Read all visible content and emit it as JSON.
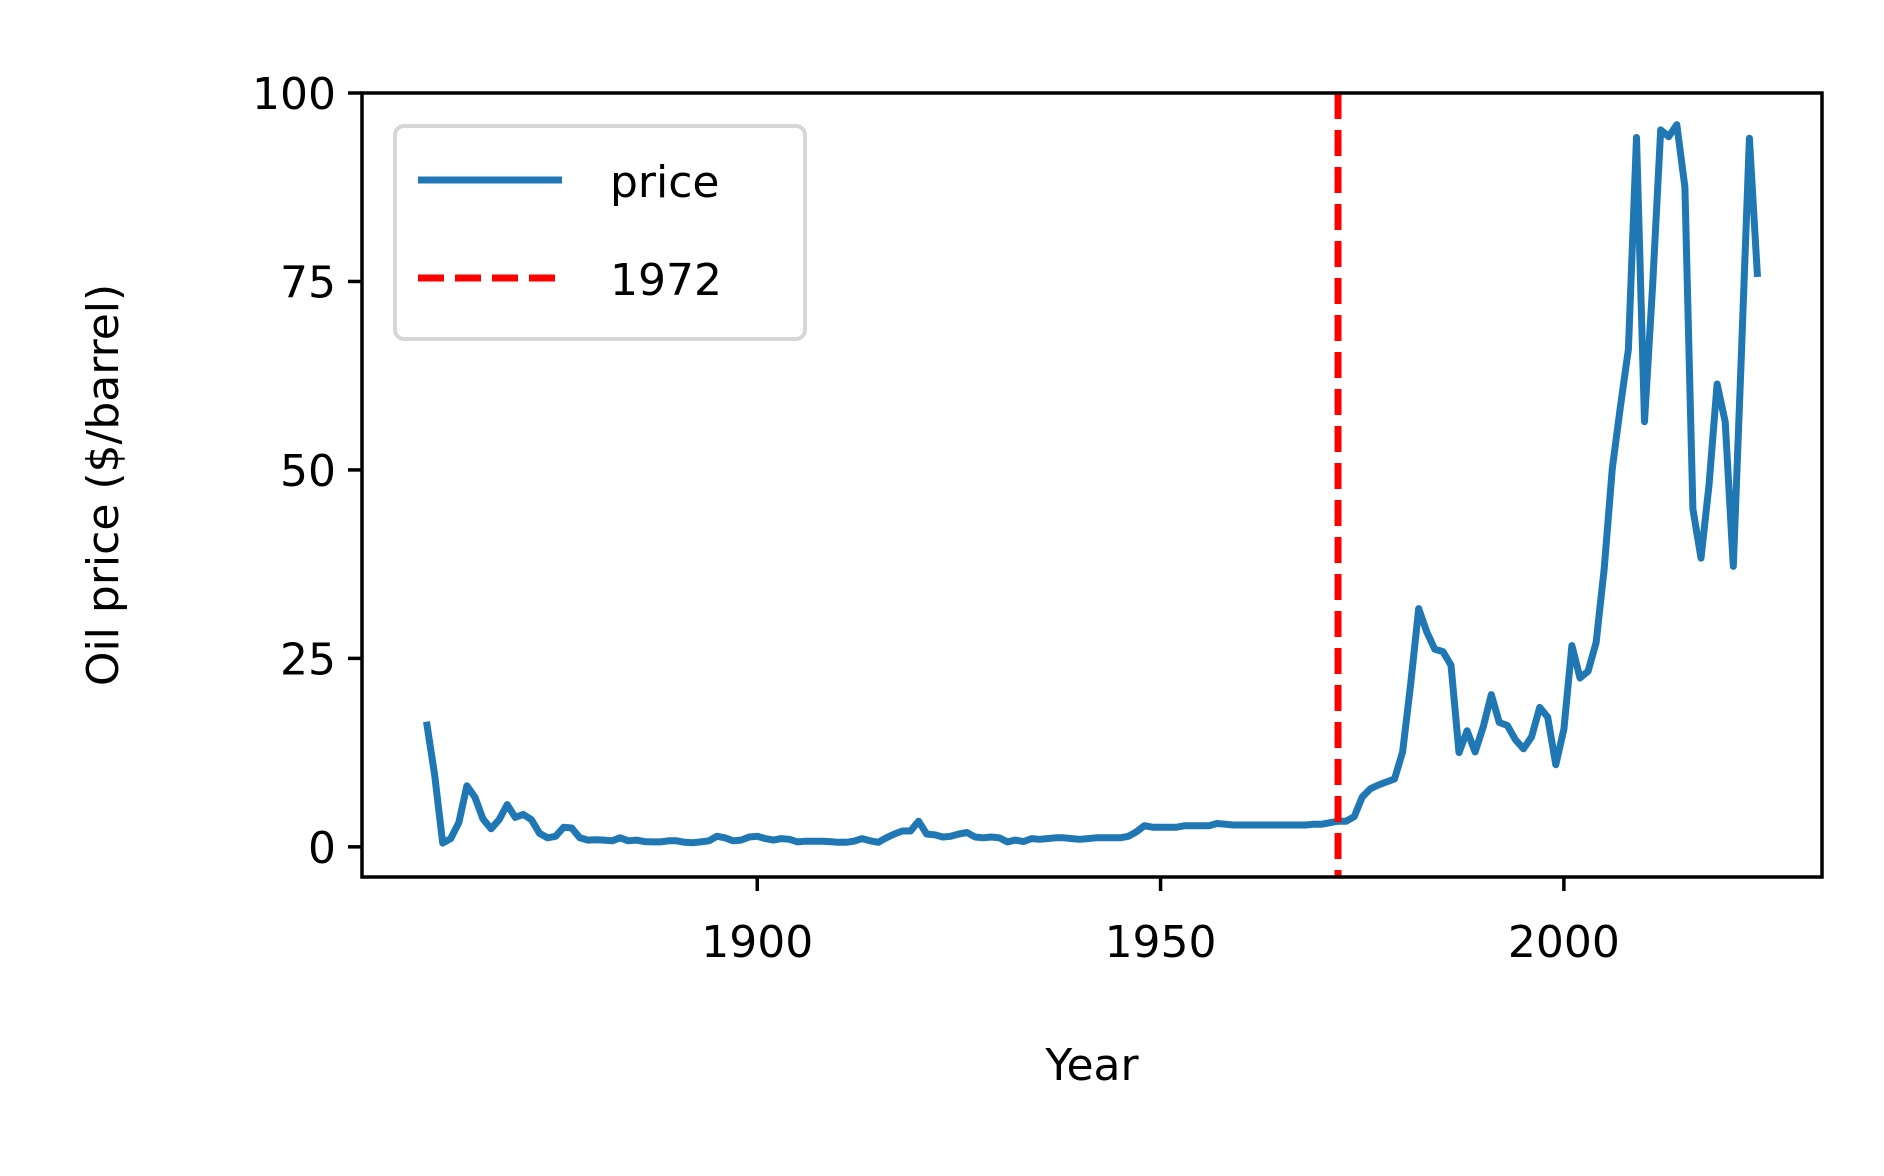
{
  "chart_data": {
    "type": "line",
    "title": "",
    "xlabel": "Year",
    "ylabel": "Oil price ($/barrel)",
    "xlim": [
      1851,
      2032
    ],
    "ylim": [
      -4,
      100
    ],
    "xticks": [
      1900,
      1950,
      2000
    ],
    "yticks": [
      0,
      25,
      50,
      75,
      100
    ],
    "grid": false,
    "legend": {
      "position": "top-left",
      "entries": [
        "price",
        "1972"
      ]
    },
    "series": [
      {
        "name": "price",
        "color": "#1f77b4",
        "x": [
          1859,
          1860,
          1861,
          1862,
          1863,
          1864,
          1865,
          1866,
          1867,
          1868,
          1869,
          1870,
          1871,
          1872,
          1873,
          1874,
          1875,
          1876,
          1877,
          1878,
          1879,
          1880,
          1881,
          1882,
          1883,
          1884,
          1885,
          1886,
          1887,
          1888,
          1889,
          1890,
          1891,
          1892,
          1893,
          1894,
          1895,
          1896,
          1897,
          1898,
          1899,
          1900,
          1901,
          1902,
          1903,
          1904,
          1905,
          1906,
          1907,
          1908,
          1909,
          1910,
          1911,
          1912,
          1913,
          1914,
          1915,
          1916,
          1917,
          1918,
          1919,
          1920,
          1921,
          1922,
          1923,
          1924,
          1925,
          1926,
          1927,
          1928,
          1929,
          1930,
          1931,
          1932,
          1933,
          1934,
          1935,
          1936,
          1937,
          1938,
          1939,
          1940,
          1941,
          1942,
          1943,
          1944,
          1945,
          1946,
          1947,
          1948,
          1949,
          1950,
          1951,
          1952,
          1953,
          1954,
          1955,
          1956,
          1957,
          1958,
          1959,
          1960,
          1961,
          1962,
          1963,
          1964,
          1965,
          1966,
          1967,
          1968,
          1969,
          1970,
          1971,
          1972,
          1973,
          1974,
          1975,
          1976,
          1977,
          1978,
          1979,
          1980,
          1981,
          1982,
          1983,
          1984,
          1985,
          1986,
          1987,
          1988,
          1989,
          1990,
          1991,
          1992,
          1993,
          1994,
          1995,
          1996,
          1997,
          1998,
          1999,
          2000,
          2001,
          2002,
          2003,
          2004,
          2005,
          2006,
          2007,
          2008,
          2009,
          2010,
          2011,
          2012,
          2013,
          2014,
          2015,
          2016,
          2017,
          2018,
          2019,
          2020,
          2021,
          2022,
          2023,
          2024
        ],
        "values": [
          16.6,
          9.6,
          0.5,
          1.1,
          3.2,
          8.1,
          6.6,
          3.7,
          2.4,
          3.6,
          5.6,
          3.9,
          4.3,
          3.6,
          1.8,
          1.2,
          1.4,
          2.6,
          2.5,
          1.2,
          0.9,
          0.95,
          0.9,
          0.8,
          1.2,
          0.8,
          0.9,
          0.7,
          0.65,
          0.65,
          0.8,
          0.8,
          0.6,
          0.55,
          0.65,
          0.8,
          1.4,
          1.2,
          0.8,
          0.9,
          1.3,
          1.4,
          1.1,
          0.9,
          1.1,
          1.0,
          0.65,
          0.75,
          0.75,
          0.75,
          0.7,
          0.6,
          0.6,
          0.75,
          1.1,
          0.8,
          0.6,
          1.2,
          1.7,
          2.1,
          2.1,
          3.4,
          1.7,
          1.6,
          1.3,
          1.4,
          1.7,
          1.9,
          1.3,
          1.2,
          1.3,
          1.2,
          0.65,
          0.9,
          0.7,
          1.1,
          1.0,
          1.1,
          1.2,
          1.2,
          1.1,
          1.0,
          1.1,
          1.2,
          1.2,
          1.2,
          1.2,
          1.4,
          2.0,
          2.8,
          2.6,
          2.6,
          2.6,
          2.6,
          2.8,
          2.8,
          2.8,
          2.8,
          3.1,
          3.0,
          2.9,
          2.9,
          2.9,
          2.9,
          2.9,
          2.9,
          2.9,
          2.9,
          2.9,
          2.9,
          3.0,
          3.0,
          3.2,
          3.4,
          3.4,
          4.0,
          6.6,
          7.7,
          8.2,
          8.6,
          9.0,
          12.6,
          21.5,
          31.6,
          28.5,
          26.2,
          25.9,
          24.1,
          12.5,
          15.4,
          12.6,
          15.9,
          20.2,
          16.5,
          16.1,
          14.2,
          13.0,
          14.6,
          18.5,
          17.2,
          10.9,
          15.6,
          26.7,
          22.4,
          23.3,
          27.1,
          36.9,
          50.2,
          58.3,
          66.0,
          94.1,
          56.4,
          74.4,
          95.1,
          94.2,
          95.8,
          87.5,
          44.8,
          38.3,
          48.1,
          61.4,
          56.4,
          37.2,
          65.0,
          94.0,
          75.6
        ]
      },
      {
        "name": "1972",
        "color": "#ff0000",
        "style": "dashed",
        "vline_x": 1972
      }
    ]
  }
}
